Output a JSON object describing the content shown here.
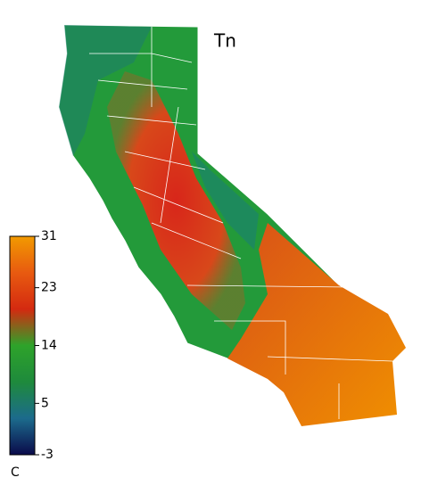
{
  "map": {
    "title": "Tn",
    "colorbar": {
      "lim": [
        -3,
        31
      ],
      "ticks": [
        -3,
        5,
        14,
        23,
        31
      ],
      "unit": "C",
      "colors": [
        "#0a0a4a",
        "#1c6b8c",
        "#1e8a3c",
        "#2ea32a",
        "#d42a10",
        "#e85a10",
        "#f29a00"
      ]
    }
  }
}
